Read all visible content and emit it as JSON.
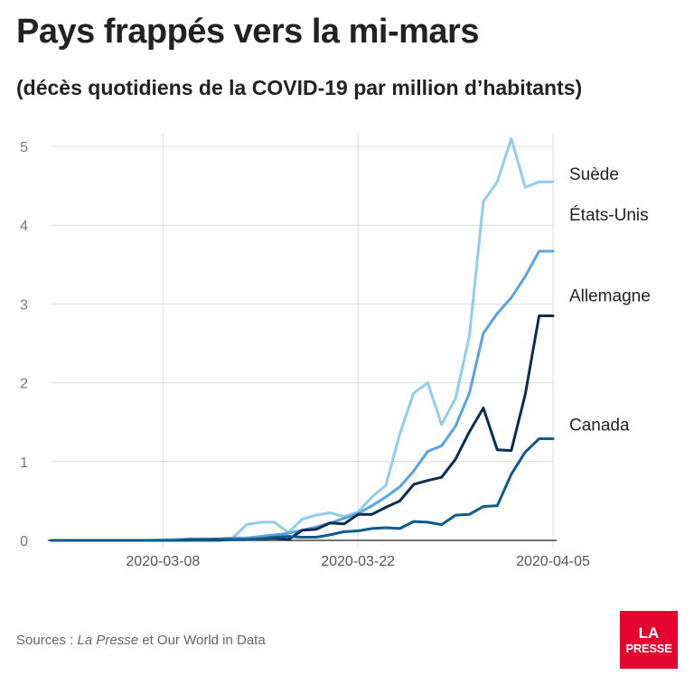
{
  "title": "Pays frappés vers la mi-mars",
  "subtitle": "(décès quotidiens de la COVID-19 par million d’habitants)",
  "sources": {
    "prefix": "Sources : ",
    "italic": "La Presse",
    "suffix": " et Our World in Data"
  },
  "logo": {
    "line1": "LA",
    "line2": "PRESSE"
  },
  "chart_data": {
    "type": "line",
    "title": "Pays frappés vers la mi-mars",
    "subtitle": "(décès quotidiens de la COVID-19 par million d’habitants)",
    "xlabel": "",
    "ylabel": "",
    "x": [
      "2020-02-29",
      "2020-03-01",
      "2020-03-02",
      "2020-03-03",
      "2020-03-04",
      "2020-03-05",
      "2020-03-06",
      "2020-03-07",
      "2020-03-08",
      "2020-03-09",
      "2020-03-10",
      "2020-03-11",
      "2020-03-12",
      "2020-03-13",
      "2020-03-14",
      "2020-03-15",
      "2020-03-16",
      "2020-03-17",
      "2020-03-18",
      "2020-03-19",
      "2020-03-20",
      "2020-03-21",
      "2020-03-22",
      "2020-03-23",
      "2020-03-24",
      "2020-03-25",
      "2020-03-26",
      "2020-03-27",
      "2020-03-28",
      "2020-03-29",
      "2020-03-30",
      "2020-03-31",
      "2020-04-01",
      "2020-04-02",
      "2020-04-03",
      "2020-04-04",
      "2020-04-05"
    ],
    "x_ticks": [
      "2020-03-08",
      "2020-03-22",
      "2020-04-05"
    ],
    "ylim": [
      0,
      5.2
    ],
    "y_ticks": [
      0,
      1,
      2,
      3,
      4,
      5
    ],
    "grid": true,
    "legend": "inline labels at line ends (right)",
    "series": [
      {
        "name": "Suède",
        "color": "#8ecdf0",
        "values": [
          0,
          0,
          0,
          0,
          0,
          0,
          0,
          0,
          0.01,
          0.01,
          0.02,
          0.02,
          0.02,
          0.03,
          0.2,
          0.23,
          0.23,
          0.1,
          0.27,
          0.32,
          0.35,
          0.3,
          0.36,
          0.55,
          0.7,
          1.35,
          1.87,
          2.0,
          1.47,
          1.8,
          2.6,
          4.3,
          4.55,
          5.1,
          4.48,
          4.55,
          4.55
        ]
      },
      {
        "name": "États-Unis",
        "color": "#5ba3de",
        "values": [
          0,
          0,
          0,
          0,
          0,
          0,
          0,
          0,
          0,
          0.01,
          0.01,
          0.01,
          0.02,
          0.03,
          0.03,
          0.05,
          0.07,
          0.09,
          0.13,
          0.17,
          0.22,
          0.28,
          0.34,
          0.44,
          0.55,
          0.68,
          0.88,
          1.13,
          1.2,
          1.45,
          1.87,
          2.63,
          2.88,
          3.08,
          3.35,
          3.67,
          3.67
        ]
      },
      {
        "name": "Allemagne",
        "color": "#0b2d52",
        "values": [
          0,
          0,
          0,
          0,
          0,
          0,
          0,
          0,
          0,
          0,
          0.01,
          0.01,
          0.01,
          0.01,
          0.01,
          0.02,
          0.03,
          0.01,
          0.13,
          0.14,
          0.22,
          0.21,
          0.33,
          0.33,
          0.42,
          0.5,
          0.71,
          0.76,
          0.8,
          1.03,
          1.38,
          1.68,
          1.15,
          1.14,
          1.85,
          2.85,
          2.85
        ]
      },
      {
        "name": "Canada",
        "color": "#0e5a8a",
        "values": [
          0,
          0,
          0,
          0,
          0,
          0,
          0,
          0,
          0,
          0,
          0,
          0,
          0,
          0.01,
          0.01,
          0.02,
          0.04,
          0.05,
          0.04,
          0.04,
          0.07,
          0.11,
          0.12,
          0.15,
          0.16,
          0.15,
          0.24,
          0.23,
          0.2,
          0.32,
          0.33,
          0.43,
          0.44,
          0.84,
          1.12,
          1.29,
          1.29
        ]
      }
    ]
  }
}
